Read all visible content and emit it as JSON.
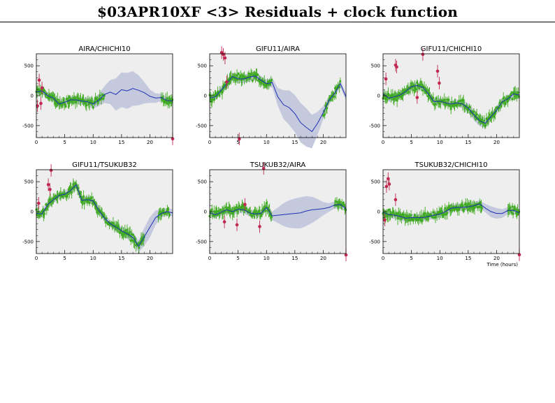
{
  "page": {
    "title": "$03APR10XF <3> Residuals + clock function"
  },
  "chart_data": {
    "type": "scatter",
    "title": "$03APR10XF <3> Residuals + clock function",
    "xlabel": "Time (hours)",
    "xlim": [
      0,
      24
    ],
    "ylim": [
      -700,
      700
    ],
    "xticks": [
      0,
      5,
      10,
      15,
      20
    ],
    "yticks": [
      500,
      0,
      -500
    ],
    "grid": false,
    "colors": {
      "background": "#eeeeee",
      "band": "#c5c9de",
      "curve": "#1f2fb5",
      "good": "#3daa1e",
      "outlier": "#c02850"
    },
    "panels": [
      {
        "title": "AIRA/CHICHI10",
        "clock": [
          [
            0,
            60
          ],
          [
            1,
            80
          ],
          [
            2,
            0
          ],
          [
            3,
            -40
          ],
          [
            4,
            -140
          ],
          [
            5,
            -110
          ],
          [
            6,
            -70
          ],
          [
            7,
            -70
          ],
          [
            8,
            -90
          ],
          [
            9,
            -100
          ],
          [
            10,
            -140
          ],
          [
            11,
            -70
          ],
          [
            12,
            20
          ],
          [
            13,
            60
          ],
          [
            14,
            20
          ],
          [
            15,
            100
          ],
          [
            16,
            80
          ],
          [
            17,
            120
          ],
          [
            18,
            90
          ],
          [
            19,
            50
          ],
          [
            20,
            -10
          ],
          [
            21,
            -40
          ],
          [
            22,
            -30
          ],
          [
            23,
            -80
          ],
          [
            24,
            -90
          ]
        ],
        "band": [
          60,
          60,
          60,
          60,
          60,
          60,
          60,
          60,
          60,
          70,
          80,
          100,
          140,
          200,
          270,
          290,
          300,
          290,
          250,
          180,
          110,
          80,
          60,
          60,
          60
        ],
        "residuals_segments": [
          [
            0,
            12
          ],
          [
            22,
            24
          ]
        ],
        "outliers": [
          [
            0.2,
            -170
          ],
          [
            0.5,
            260
          ],
          [
            0.8,
            -130
          ],
          [
            1.0,
            130
          ],
          [
            24,
            -720
          ]
        ]
      },
      {
        "title": "GIFU11/AIRA",
        "clock": [
          [
            0,
            -40
          ],
          [
            1,
            -20
          ],
          [
            2,
            90
          ],
          [
            3,
            200
          ],
          [
            4,
            320
          ],
          [
            5,
            280
          ],
          [
            6,
            280
          ],
          [
            7,
            310
          ],
          [
            8,
            330
          ],
          [
            9,
            260
          ],
          [
            10,
            200
          ],
          [
            11,
            220
          ],
          [
            12,
            -20
          ],
          [
            13,
            -150
          ],
          [
            14,
            -200
          ],
          [
            15,
            -300
          ],
          [
            16,
            -450
          ],
          [
            17,
            -530
          ],
          [
            18,
            -600
          ],
          [
            19,
            -460
          ],
          [
            20,
            -280
          ],
          [
            21,
            -80
          ],
          [
            22,
            40
          ],
          [
            23,
            200
          ],
          [
            24,
            -20
          ]
        ],
        "band": [
          60,
          60,
          60,
          70,
          70,
          70,
          70,
          70,
          70,
          70,
          70,
          80,
          150,
          240,
          290,
          310,
          330,
          320,
          280,
          190,
          110,
          70,
          60,
          60,
          60
        ],
        "residuals_segments": [
          [
            0,
            11
          ],
          [
            20,
            23
          ]
        ],
        "outliers": [
          [
            2.1,
            720
          ],
          [
            2.4,
            690
          ],
          [
            2.7,
            630
          ],
          [
            3.0,
            230
          ],
          [
            5.2,
            -730
          ]
        ]
      },
      {
        "title": "GIFU11/CHICHI10",
        "clock": [
          [
            0,
            30
          ],
          [
            1,
            -40
          ],
          [
            2,
            -20
          ],
          [
            3,
            10
          ],
          [
            4,
            70
          ],
          [
            5,
            150
          ],
          [
            6,
            170
          ],
          [
            7,
            140
          ],
          [
            8,
            30
          ],
          [
            9,
            -100
          ],
          [
            10,
            -90
          ],
          [
            11,
            -120
          ],
          [
            12,
            -140
          ],
          [
            13,
            -120
          ],
          [
            14,
            -140
          ],
          [
            15,
            -210
          ],
          [
            16,
            -320
          ],
          [
            17,
            -420
          ],
          [
            18,
            -460
          ],
          [
            19,
            -350
          ],
          [
            20,
            -240
          ],
          [
            21,
            -100
          ],
          [
            22,
            -50
          ],
          [
            23,
            30
          ],
          [
            24,
            10
          ]
        ],
        "band": [
          60,
          60,
          60,
          60,
          60,
          60,
          60,
          60,
          60,
          60,
          60,
          60,
          60,
          60,
          70,
          80,
          90,
          90,
          80,
          70,
          70,
          60,
          60,
          60,
          60
        ],
        "residuals_segments": [
          [
            0,
            24
          ]
        ],
        "outliers": [
          [
            0.5,
            280
          ],
          [
            2.2,
            510
          ],
          [
            2.4,
            480
          ],
          [
            6.0,
            -30
          ],
          [
            7.0,
            690
          ],
          [
            9.6,
            410
          ],
          [
            9.9,
            210
          ]
        ]
      },
      {
        "title": "GIFU11/TSUKUB32",
        "clock": [
          [
            0,
            -30
          ],
          [
            1,
            -40
          ],
          [
            2,
            120
          ],
          [
            3,
            200
          ],
          [
            4,
            270
          ],
          [
            5,
            290
          ],
          [
            6,
            350
          ],
          [
            7,
            450
          ],
          [
            8,
            190
          ],
          [
            9,
            200
          ],
          [
            10,
            180
          ],
          [
            11,
            20
          ],
          [
            12,
            -110
          ],
          [
            13,
            -200
          ],
          [
            14,
            -260
          ],
          [
            15,
            -320
          ],
          [
            16,
            -370
          ],
          [
            17,
            -430
          ],
          [
            18,
            -580
          ],
          [
            19,
            -420
          ],
          [
            20,
            -260
          ],
          [
            21,
            -100
          ],
          [
            22,
            -30
          ],
          [
            23,
            0
          ],
          [
            24,
            -20
          ]
        ],
        "band": [
          60,
          60,
          60,
          60,
          60,
          60,
          60,
          60,
          60,
          60,
          60,
          60,
          60,
          60,
          60,
          70,
          80,
          90,
          100,
          150,
          170,
          120,
          70,
          60,
          60
        ],
        "residuals_segments": [
          [
            0,
            19
          ],
          [
            21.5,
            23.5
          ]
        ],
        "outliers": [
          [
            0.4,
            140
          ],
          [
            2.1,
            450
          ],
          [
            2.4,
            370
          ],
          [
            2.6,
            690
          ]
        ]
      },
      {
        "title": "TSUKUB32/AIRA",
        "clock": [
          [
            0,
            -20
          ],
          [
            1,
            -50
          ],
          [
            2,
            -10
          ],
          [
            3,
            30
          ],
          [
            4,
            0
          ],
          [
            5,
            40
          ],
          [
            6,
            30
          ],
          [
            7,
            -20
          ],
          [
            8,
            -40
          ],
          [
            9,
            -30
          ],
          [
            10,
            70
          ],
          [
            11,
            -70
          ],
          [
            12,
            -60
          ],
          [
            13,
            -50
          ],
          [
            14,
            -40
          ],
          [
            15,
            -30
          ],
          [
            16,
            -20
          ],
          [
            17,
            10
          ],
          [
            18,
            30
          ],
          [
            19,
            40
          ],
          [
            20,
            50
          ],
          [
            21,
            70
          ],
          [
            22,
            110
          ],
          [
            23,
            120
          ],
          [
            24,
            50
          ]
        ],
        "band": [
          60,
          60,
          60,
          60,
          60,
          60,
          60,
          60,
          60,
          60,
          60,
          70,
          130,
          190,
          230,
          250,
          260,
          250,
          220,
          170,
          110,
          70,
          60,
          60,
          60
        ],
        "residuals_segments": [
          [
            0,
            11
          ],
          [
            22,
            24
          ]
        ],
        "outliers": [
          [
            2.6,
            -170
          ],
          [
            4.8,
            -220
          ],
          [
            6.2,
            120
          ],
          [
            8.8,
            -250
          ],
          [
            9.5,
            740
          ],
          [
            24,
            -750
          ]
        ]
      },
      {
        "title": "TSUKUB32/CHICHI10",
        "clock": [
          [
            0,
            -10
          ],
          [
            1,
            -50
          ],
          [
            2,
            -60
          ],
          [
            3,
            -80
          ],
          [
            4,
            -110
          ],
          [
            5,
            -100
          ],
          [
            6,
            -100
          ],
          [
            7,
            -100
          ],
          [
            8,
            -80
          ],
          [
            9,
            -60
          ],
          [
            10,
            -40
          ],
          [
            11,
            0
          ],
          [
            12,
            60
          ],
          [
            13,
            70
          ],
          [
            14,
            70
          ],
          [
            15,
            80
          ],
          [
            16,
            100
          ],
          [
            17,
            130
          ],
          [
            18,
            60
          ],
          [
            19,
            0
          ],
          [
            20,
            -30
          ],
          [
            21,
            -30
          ],
          [
            22,
            20
          ],
          [
            23,
            20
          ],
          [
            24,
            -20
          ]
        ],
        "band": [
          60,
          60,
          60,
          60,
          60,
          60,
          60,
          60,
          60,
          60,
          60,
          60,
          60,
          60,
          60,
          60,
          60,
          60,
          70,
          90,
          90,
          70,
          60,
          60,
          60
        ],
        "residuals_segments": [
          [
            0,
            17.5
          ],
          [
            22,
            24
          ]
        ],
        "outliers": [
          [
            0.3,
            -140
          ],
          [
            0.6,
            420
          ],
          [
            0.9,
            550
          ],
          [
            1.1,
            460
          ],
          [
            2.2,
            200
          ],
          [
            24,
            -720
          ]
        ]
      }
    ]
  }
}
